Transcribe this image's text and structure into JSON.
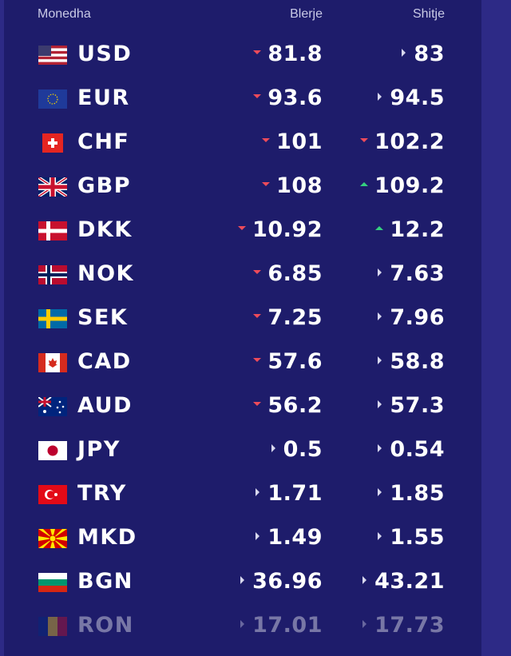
{
  "header": {
    "currency": "Monedha",
    "buy": "Blerje",
    "sell": "Shitje"
  },
  "rows": [
    {
      "code": "USD",
      "buy": "81.8",
      "sell": "83",
      "buy_trend": "down",
      "sell_trend": "flat"
    },
    {
      "code": "EUR",
      "buy": "93.6",
      "sell": "94.5",
      "buy_trend": "down",
      "sell_trend": "flat"
    },
    {
      "code": "CHF",
      "buy": "101",
      "sell": "102.2",
      "buy_trend": "down",
      "sell_trend": "down"
    },
    {
      "code": "GBP",
      "buy": "108",
      "sell": "109.2",
      "buy_trend": "down",
      "sell_trend": "up"
    },
    {
      "code": "DKK",
      "buy": "10.92",
      "sell": "12.2",
      "buy_trend": "down",
      "sell_trend": "up"
    },
    {
      "code": "NOK",
      "buy": "6.85",
      "sell": "7.63",
      "buy_trend": "down",
      "sell_trend": "flat"
    },
    {
      "code": "SEK",
      "buy": "7.25",
      "sell": "7.96",
      "buy_trend": "down",
      "sell_trend": "flat"
    },
    {
      "code": "CAD",
      "buy": "57.6",
      "sell": "58.8",
      "buy_trend": "down",
      "sell_trend": "flat"
    },
    {
      "code": "AUD",
      "buy": "56.2",
      "sell": "57.3",
      "buy_trend": "down",
      "sell_trend": "flat"
    },
    {
      "code": "JPY",
      "buy": "0.5",
      "sell": "0.54",
      "buy_trend": "flat",
      "sell_trend": "flat"
    },
    {
      "code": "TRY",
      "buy": "1.71",
      "sell": "1.85",
      "buy_trend": "flat",
      "sell_trend": "flat"
    },
    {
      "code": "MKD",
      "buy": "1.49",
      "sell": "1.55",
      "buy_trend": "flat",
      "sell_trend": "flat"
    },
    {
      "code": "BGN",
      "buy": "36.96",
      "sell": "43.21",
      "buy_trend": "flat",
      "sell_trend": "flat"
    },
    {
      "code": "RON",
      "buy": "17.01",
      "sell": "17.73",
      "buy_trend": "flat",
      "sell_trend": "flat"
    }
  ]
}
